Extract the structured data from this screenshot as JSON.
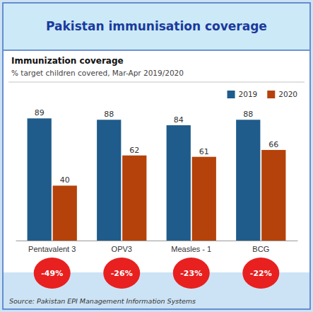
{
  "chart_data": {
    "type": "bar",
    "title": "Pakistan immunisation coverage",
    "subtitle": [
      "Immunization coverage",
      "% target children covered, Mar-Apr 2019/2020"
    ],
    "source": "Source: Pakistan EPI Management Information Systems",
    "categories": [
      "Pentavalent 3",
      "OPV3",
      "Measles - 1",
      "BCG"
    ],
    "series": [
      {
        "name": "2019",
        "color": "#1f5c8b",
        "values": [
          89,
          88,
          84,
          88
        ]
      },
      {
        "name": "2020",
        "color": "#b5420a",
        "values": [
          40,
          62,
          61,
          66
        ]
      }
    ],
    "annotations": [
      "-49%",
      "-26%",
      "-23%",
      "-22%"
    ],
    "ylim": [
      0,
      100
    ],
    "grid": false,
    "legend": "upper right",
    "data_labels": true,
    "tick_labels": "x"
  }
}
